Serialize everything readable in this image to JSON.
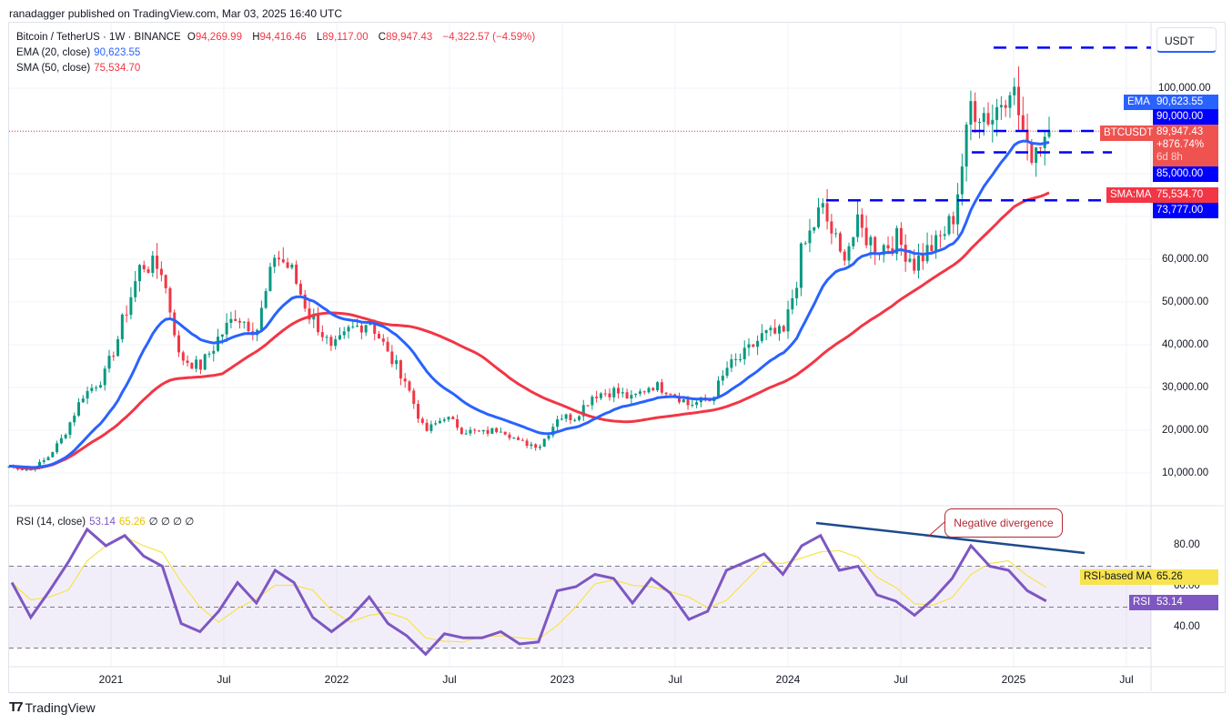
{
  "published": "ranadagger published on TradingView.com, Mar 03, 2025 16:40 UTC",
  "legend": {
    "symbol": "Bitcoin / TetherUS · 1W · BINANCE",
    "open_label": "O",
    "open": "94,269.99",
    "high_label": "H",
    "high": "94,416.46",
    "low_label": "L",
    "low": "89,117.00",
    "close_label": "C",
    "close": "89,947.43",
    "change": "−4,322.57 (−4.59%)",
    "ema_label": "EMA (20, close)",
    "ema_value": "90,623.55",
    "sma_label": "SMA (50, close)",
    "sma_value": "75,534.70",
    "rsi_label": "RSI (14, close)",
    "rsi_value": "53.14",
    "rsi_ma_value": "65.26",
    "rsi_extra": "∅ ∅ ∅ ∅"
  },
  "price_axis": {
    "currency": "USDT",
    "ticks": [
      "100,000.00",
      "60,000.00",
      "50,000.00",
      "40,000.00",
      "30,000.00",
      "20,000.00",
      "10,000.00"
    ]
  },
  "tags": {
    "ema": "EMA",
    "ema_price": "90,623.55",
    "level_90k": "90,000.00",
    "symbol": "BTCUSDT",
    "last_price": "89,947.43",
    "last_change": "+876.74%",
    "countdown": "6d 8h",
    "level_85k": "85,000.00",
    "sma": "SMA:MA",
    "sma_price": "75,534.70",
    "level_73k": "73,777.00",
    "rsi_ma": "RSI-based MA",
    "rsi_ma_value": "65.26",
    "rsi": "RSI",
    "rsi_value": "53.14"
  },
  "rsi_axis": {
    "ticks": [
      "80.00",
      "60.00",
      "40.00"
    ]
  },
  "time_axis": [
    "2021",
    "Jul",
    "2022",
    "Jul",
    "2023",
    "Jul",
    "2024",
    "Jul",
    "2025",
    "Jul"
  ],
  "annotation": "Negative divergence",
  "footer": "TradingView",
  "colors": {
    "up": "#089981",
    "down": "#f23645",
    "ema": "#2962ff",
    "sma": "#f23645",
    "rsi": "#7e57c2",
    "rsi_ma": "#f7e34f",
    "level": "#0000ff"
  },
  "chart_data": {
    "type": "candlestick",
    "title": "Bitcoin / TetherUS · 1W · BINANCE",
    "ylim": [
      0,
      115000
    ],
    "x_start": "2020-08",
    "monthly_close": [
      11600,
      10780,
      13800,
      19700,
      29000,
      33100,
      45200,
      58800,
      57700,
      37300,
      35000,
      41500,
      47100,
      43800,
      61300,
      57000,
      46200,
      38500,
      43200,
      45500,
      37600,
      31800,
      19900,
      23300,
      20000,
      19400,
      20500,
      17200,
      16500,
      23100,
      23100,
      28500,
      29200,
      27200,
      30500,
      29200,
      26000,
      27000,
      34600,
      37700,
      42300,
      42600,
      61100,
      71300,
      60600,
      67500,
      62700,
      64600,
      59000,
      63300,
      70200,
      96400,
      93400,
      102400,
      84300,
      89947
    ],
    "horizontal_levels": [
      109500,
      90000,
      85000,
      73777
    ],
    "rsi_monthly": [
      62,
      45,
      58,
      72,
      88,
      80,
      85,
      75,
      70,
      42,
      38,
      48,
      62,
      52,
      68,
      62,
      45,
      38,
      45,
      55,
      42,
      36,
      27,
      37,
      35,
      35,
      38,
      32,
      33,
      58,
      60,
      66,
      64,
      52,
      64,
      57,
      44,
      48,
      68,
      72,
      76,
      66,
      80,
      85,
      68,
      70,
      56,
      53,
      46,
      54,
      64,
      80,
      70,
      68,
      58,
      53
    ],
    "rsi_levels": [
      70,
      50,
      30
    ],
    "rsi_ylim": [
      20,
      100
    ]
  }
}
